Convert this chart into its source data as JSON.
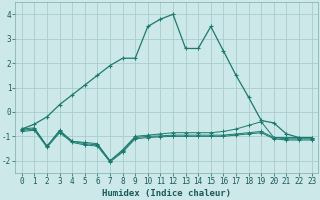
{
  "xlabel": "Humidex (Indice chaleur)",
  "bg_color": "#cce8e8",
  "grid_color": "#aacccc",
  "line_color": "#1a7a6e",
  "xlim": [
    -0.5,
    23.5
  ],
  "ylim": [
    -2.5,
    4.5
  ],
  "xticks": [
    0,
    1,
    2,
    3,
    4,
    5,
    6,
    7,
    8,
    9,
    10,
    11,
    12,
    13,
    14,
    15,
    16,
    17,
    18,
    19,
    20,
    21,
    22,
    23
  ],
  "yticks": [
    -2,
    -1,
    0,
    1,
    2,
    3,
    4
  ],
  "line1_x": [
    0,
    1,
    2,
    3,
    4,
    5,
    6,
    7,
    8,
    9,
    10,
    11,
    12,
    13,
    14,
    15,
    16,
    17,
    18,
    19,
    20,
    21,
    22,
    23
  ],
  "line1_y": [
    -0.7,
    -0.5,
    -0.2,
    0.3,
    0.7,
    1.1,
    1.5,
    1.9,
    2.2,
    2.2,
    3.5,
    3.8,
    4.0,
    2.6,
    2.6,
    3.5,
    2.5,
    1.5,
    0.6,
    -0.35,
    -0.45,
    -0.9,
    -1.05,
    -1.05
  ],
  "line2_x": [
    0,
    1,
    2,
    3,
    4,
    5,
    6,
    7,
    8,
    9,
    10,
    11,
    12,
    13,
    14,
    15,
    16,
    17,
    18,
    19,
    20,
    21,
    22,
    23
  ],
  "line2_y": [
    -0.7,
    -0.65,
    -1.4,
    -0.75,
    -1.2,
    -1.25,
    -1.3,
    -2.0,
    -1.55,
    -1.0,
    -0.95,
    -0.9,
    -0.85,
    -0.85,
    -0.85,
    -0.85,
    -0.8,
    -0.7,
    -0.55,
    -0.4,
    -1.05,
    -1.05,
    -1.05,
    -1.05
  ],
  "line3_x": [
    0,
    1,
    2,
    3,
    4,
    5,
    6,
    7,
    8,
    9,
    10,
    11,
    12,
    13,
    14,
    15,
    16,
    17,
    18,
    19,
    20,
    21,
    22,
    23
  ],
  "line3_y": [
    -0.75,
    -0.7,
    -1.4,
    -0.8,
    -1.2,
    -1.3,
    -1.35,
    -2.0,
    -1.6,
    -1.05,
    -1.0,
    -0.98,
    -0.95,
    -0.95,
    -0.95,
    -0.95,
    -0.95,
    -0.9,
    -0.85,
    -0.8,
    -1.05,
    -1.1,
    -1.1,
    -1.1
  ],
  "line4_x": [
    0,
    1,
    2,
    3,
    4,
    5,
    6,
    7,
    8,
    9,
    10,
    11,
    12,
    13,
    14,
    15,
    16,
    17,
    18,
    19,
    20,
    21,
    22,
    23
  ],
  "line4_y": [
    -0.8,
    -0.75,
    -1.45,
    -0.85,
    -1.25,
    -1.35,
    -1.4,
    -2.05,
    -1.65,
    -1.1,
    -1.05,
    -1.02,
    -1.0,
    -1.0,
    -1.0,
    -1.0,
    -1.0,
    -0.95,
    -0.9,
    -0.85,
    -1.1,
    -1.15,
    -1.15,
    -1.15
  ]
}
